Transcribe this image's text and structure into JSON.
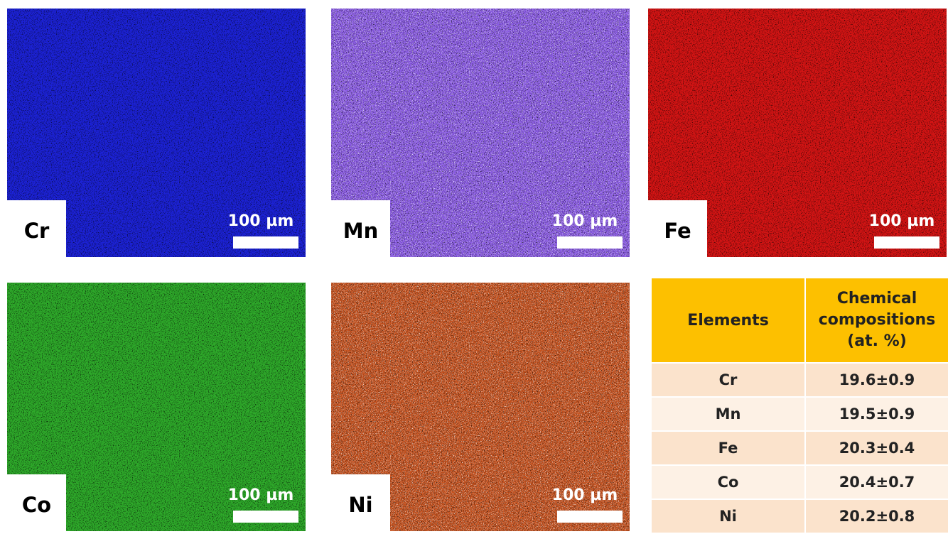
{
  "maps": [
    {
      "element": "Cr",
      "scale_label": "100 µm"
    },
    {
      "element": "Mn",
      "scale_label": "100 µm"
    },
    {
      "element": "Fe",
      "scale_label": "100 µm"
    },
    {
      "element": "Co",
      "scale_label": "100 µm"
    },
    {
      "element": "Ni",
      "scale_label": "100 µm"
    }
  ],
  "table": {
    "header": [
      "Elements",
      "Chemical compositions (at. %)"
    ],
    "rows": [
      [
        "Cr",
        "19.6±0.9"
      ],
      [
        "Mn",
        "19.5±0.9"
      ],
      [
        "Fe",
        "20.3±0.4"
      ],
      [
        "Co",
        "20.4±0.7"
      ],
      [
        "Ni",
        "20.2±0.8"
      ]
    ]
  }
}
